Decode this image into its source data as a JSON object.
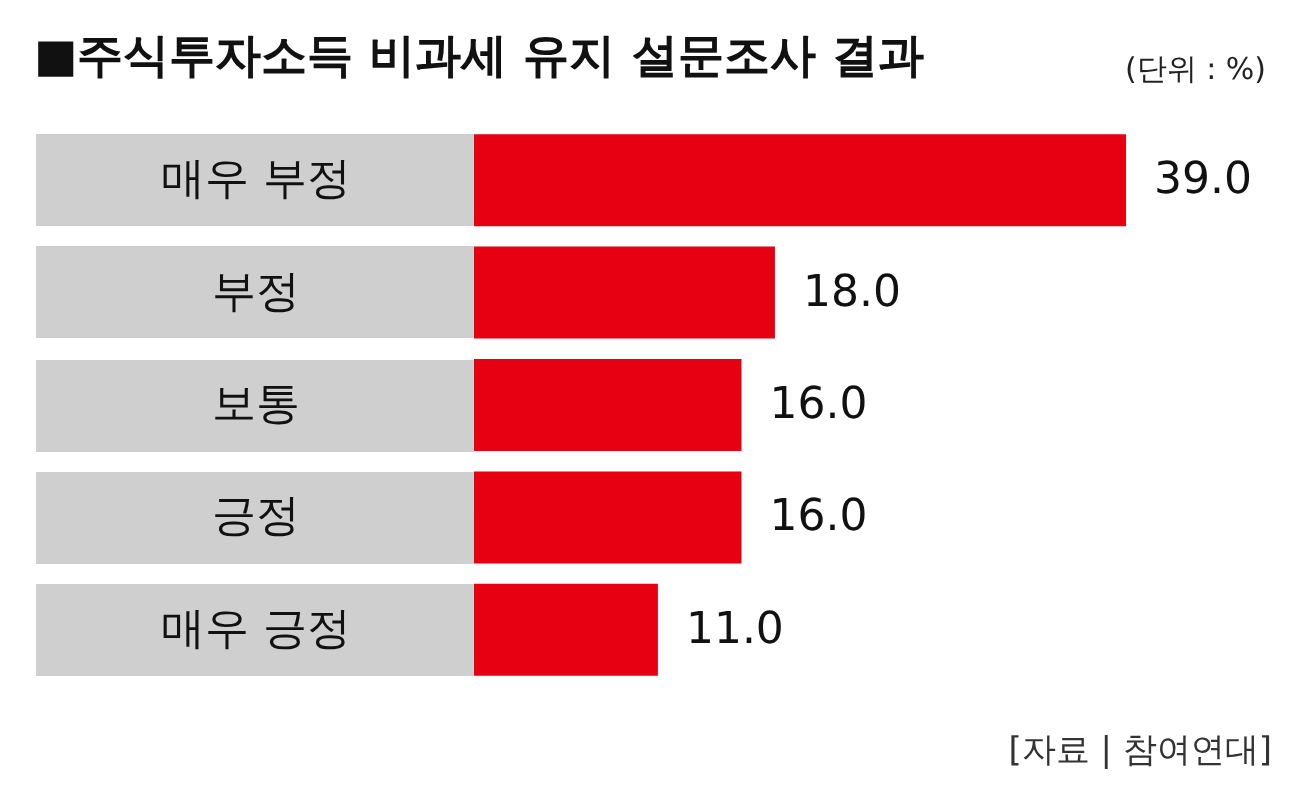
{
  "chart_data": {
    "type": "bar",
    "orientation": "horizontal",
    "title": "■주식투자소득 비과세 유지 설문조사 결과",
    "subtitle": "(단위 : %)",
    "categories": [
      "매우 부정",
      "부정",
      "보통",
      "긍정",
      "매우 긍정"
    ],
    "values": [
      39.0,
      18.0,
      16.0,
      16.0,
      11.0
    ],
    "value_labels": [
      "39.0",
      "18.0",
      "16.0",
      "16.0",
      "11.0"
    ],
    "color": "#e60012",
    "annotations": [
      "[자료 | 참여연대]"
    ]
  }
}
